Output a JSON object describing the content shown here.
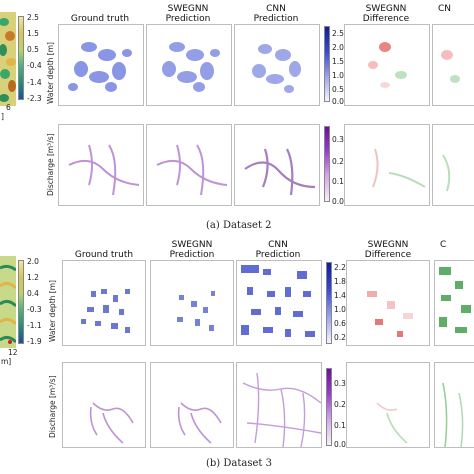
{
  "headers_top": {
    "ground_truth": "Ground truth",
    "swegnn_pred_l1": "SWEGNN",
    "swegnn_pred_l2": "Prediction",
    "cnn_pred_l1": "CNN",
    "cnn_pred_l2": "Prediction",
    "swegnn_diff_l1": "SWEGNN",
    "swegnn_diff_l2": "Difference",
    "cnn_diff_l1": "CN"
  },
  "headers_bottom": {
    "ground_truth": "Ground truth",
    "swegnn_pred_l1": "SWEGNN",
    "swegnn_pred_l2": "Prediction",
    "cnn_pred_l1": "CNN",
    "cnn_pred_l2": "Prediction",
    "swegnn_diff_l1": "SWEGNN",
    "swegnn_diff_l2": "Difference",
    "cnn_diff_l1": "C"
  },
  "dataset2": {
    "caption": "(a) Dataset 2",
    "dem_ticks": [
      "2.5",
      "1.5",
      "0.5",
      "-0.4",
      "-1.4",
      "-2.3"
    ],
    "dem_axis_tick": "6",
    "dem_axis_label": "]",
    "water_depth_label": "Water depth [m]",
    "water_depth_ticks": [
      "2.5",
      "2.0",
      "1.5",
      "1.0",
      "0.5",
      "0.0"
    ],
    "discharge_label": "Discharge [m³/s]",
    "discharge_ticks": [
      "0.3",
      "0.2",
      "0.1",
      "0.0"
    ]
  },
  "dataset3": {
    "caption": "(b) Dataset 3",
    "dem_ticks": [
      "2.0",
      "1.2",
      "0.4",
      "-0.3",
      "-1.1",
      "-1.9"
    ],
    "dem_axis_tick": "12",
    "dem_axis_label": "m]",
    "water_depth_label": "Water depth [m]",
    "water_depth_ticks": [
      "2.2",
      "1.8",
      "1.4",
      "1.0",
      "0.6",
      "0.2"
    ],
    "discharge_label": "Discharge [m³/s]",
    "discharge_ticks": [
      "0.3",
      "0.2",
      "0.1",
      "0.0"
    ]
  },
  "colors": {
    "water_blue": "#1f2fbf",
    "discharge_purple": "#7a1fa6",
    "diff_red": "#d62020",
    "diff_green": "#1e8a2a"
  }
}
